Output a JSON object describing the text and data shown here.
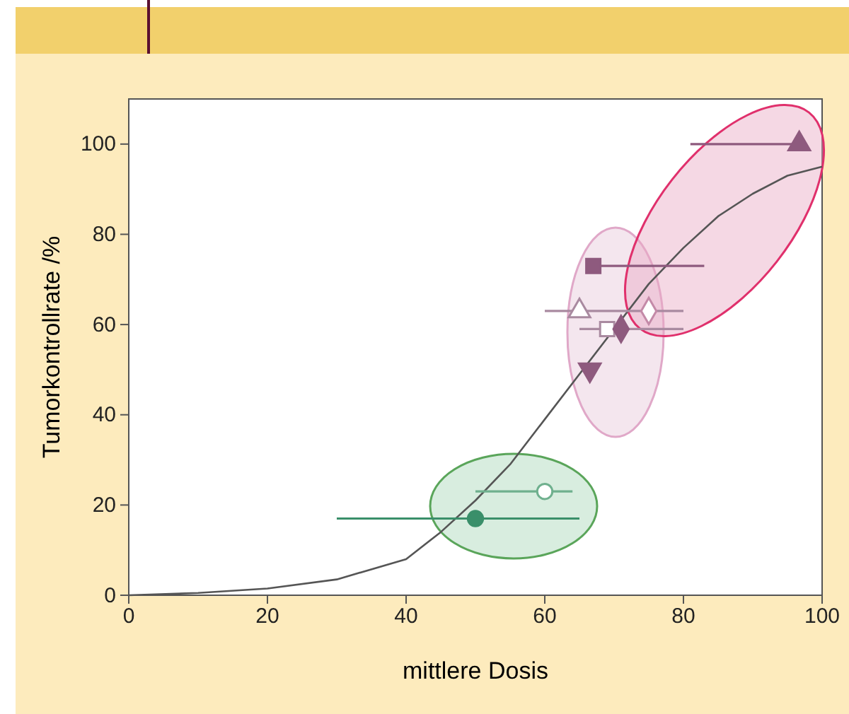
{
  "chart_data": {
    "type": "scatter",
    "xlabel": "mittlere Dosis",
    "ylabel": "Tumorkontrollrate /%",
    "xlim": [
      0,
      100
    ],
    "ylim": [
      0,
      110
    ],
    "xticks": [
      0,
      20,
      40,
      60,
      80,
      100
    ],
    "yticks": [
      0,
      20,
      40,
      60,
      80,
      100
    ],
    "grid": false,
    "series": [
      {
        "type": "line",
        "color": "#555555",
        "marker": "none",
        "line_style": "solid",
        "x": [
          0,
          10,
          20,
          30,
          40,
          45,
          50,
          55,
          60,
          65,
          70,
          75,
          80,
          85,
          90,
          95,
          100
        ],
        "values": [
          0,
          0.5,
          1.5,
          3.5,
          8,
          14,
          21,
          29,
          39,
          49,
          59,
          69,
          77,
          84,
          89,
          93,
          95
        ]
      },
      {
        "color": "#8e5a7e",
        "marker": "triangle",
        "x": [
          96.7
        ],
        "values": [
          100
        ],
        "xerrors": [
          [
            81,
            97
          ]
        ]
      },
      {
        "color": "#8e5a7e",
        "marker": "square",
        "x": [
          67
        ],
        "values": [
          73
        ],
        "xerrors": [
          [
            67,
            83
          ]
        ]
      },
      {
        "color": "#a98aa0",
        "marker": "triangle",
        "colors": [
          "#ffffff"
        ],
        "x": [
          65
        ],
        "values": [
          63
        ],
        "xerrors": [
          [
            60,
            80
          ]
        ]
      },
      {
        "color": "#c48aa8",
        "marker": "diamond",
        "colors": [
          "#ffffff"
        ],
        "x": [
          75
        ],
        "values": [
          63
        ]
      },
      {
        "color": "#a98aa0",
        "marker": "square",
        "colors": [
          "#ffffff"
        ],
        "x": [
          69
        ],
        "values": [
          59
        ],
        "xerrors": [
          [
            65,
            80
          ]
        ]
      },
      {
        "color": "#8e5a7e",
        "marker": "diamond",
        "x": [
          71
        ],
        "values": [
          59
        ]
      },
      {
        "color": "#8e5a7e",
        "marker": "triangle-down",
        "x": [
          66.5
        ],
        "values": [
          50
        ]
      },
      {
        "color": "#6fb08e",
        "marker": "circle",
        "colors": [
          "#ffffff"
        ],
        "x": [
          60
        ],
        "values": [
          23
        ],
        "xerrors": [
          [
            50,
            64
          ]
        ]
      },
      {
        "color": "#3a8f6a",
        "marker": "circle",
        "x": [
          50
        ],
        "values": [
          17
        ],
        "xerrors": [
          [
            30,
            65
          ]
        ]
      }
    ]
  }
}
